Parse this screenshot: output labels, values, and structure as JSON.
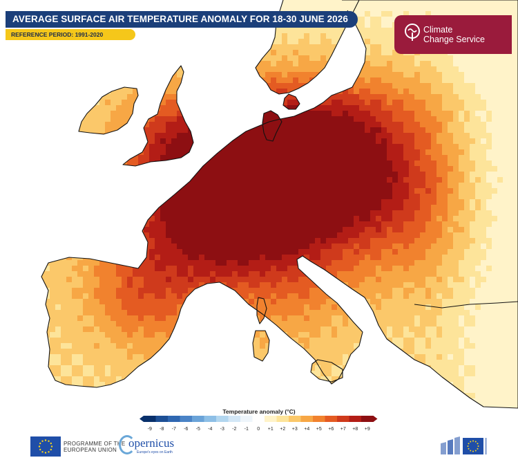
{
  "header": {
    "title": "AVERAGE SURFACE AIR TEMPERATURE ANOMALY FOR 18-30 JUNE 2026",
    "reference_period": "REFERENCE PERIOD: 1991-2020"
  },
  "branding": {
    "c3s_line1": "Climate",
    "c3s_line2": "Change Service",
    "eu_line1": "PROGRAMME OF THE",
    "eu_line2": "EUROPEAN UNION",
    "copernicus_word": "opernicus",
    "copernicus_tagline": "Europe's eyes on Earth"
  },
  "legend": {
    "title": "Temperature anomaly (°C)",
    "ticks": [
      "-9",
      "-8",
      "-7",
      "-6",
      "-5",
      "-4",
      "-3",
      "-2",
      "-1",
      "0",
      "+1",
      "+2",
      "+3",
      "+4",
      "+5",
      "+6",
      "+7",
      "+8",
      "+9"
    ],
    "colors": [
      "#08306b",
      "#1d4f95",
      "#2f67b1",
      "#4a83c6",
      "#6aa3d8",
      "#8dbfe6",
      "#b2d6ef",
      "#d3e7f6",
      "#eef5fb",
      "#ffffff",
      "#fff3c9",
      "#fde49a",
      "#fbc86a",
      "#f7a745",
      "#f1822e",
      "#e45b22",
      "#cf3a1c",
      "#b31d16",
      "#8d0f12"
    ],
    "min_color": "#08306b",
    "max_color": "#8d0f12"
  },
  "map": {
    "colors": {
      "sea": "#ffffff",
      "coastline": "#111111",
      "anomaly_plus1": "#fff3c9",
      "anomaly_plus2": "#fde49a",
      "anomaly_plus3": "#fbc86a",
      "anomaly_plus4": "#f7a745",
      "anomaly_plus5": "#f1822e",
      "anomaly_plus6": "#e45b22",
      "anomaly_plus7": "#cf3a1c",
      "anomaly_plus8": "#b31d16",
      "anomaly_plus9": "#8d0f12"
    }
  }
}
